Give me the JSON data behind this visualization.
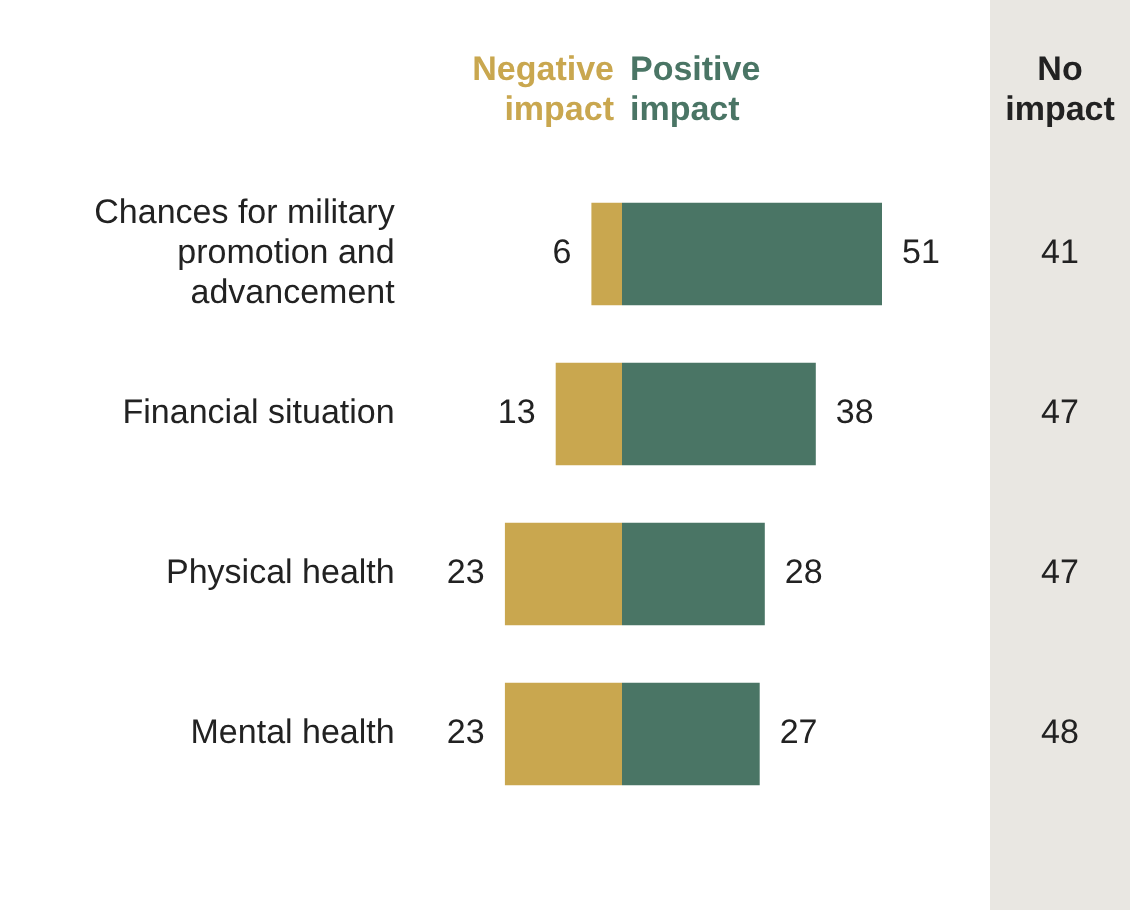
{
  "chart_data": [
    {
      "type": "bar",
      "orientation": "horizontal",
      "categories": [
        "Chances for military promotion and advancement",
        "Financial situation",
        "Physical health",
        "Mental health"
      ],
      "series": [
        {
          "name": "Negative impact",
          "color": "#c9a74f",
          "values": [
            6,
            13,
            23,
            23
          ]
        }
      ],
      "xlim": [
        23,
        0
      ],
      "tick_labels": "y",
      "legend": false,
      "data_labels": true
    },
    {
      "type": "bar",
      "orientation": "horizontal",
      "categories": [
        null,
        null,
        null,
        null
      ],
      "series": [
        {
          "name": "Positive impact",
          "color": "#4a7565",
          "values": [
            51,
            38,
            28,
            27
          ]
        }
      ],
      "xlim": [
        0,
        51
      ],
      "tick_labels": false,
      "legend": false,
      "data_labels": true
    },
    {
      "type": "other",
      "title": "No impact",
      "color": "#e9e7e2",
      "values": [
        41,
        47,
        47,
        48
      ],
      "data_labels": true
    }
  ]
}
